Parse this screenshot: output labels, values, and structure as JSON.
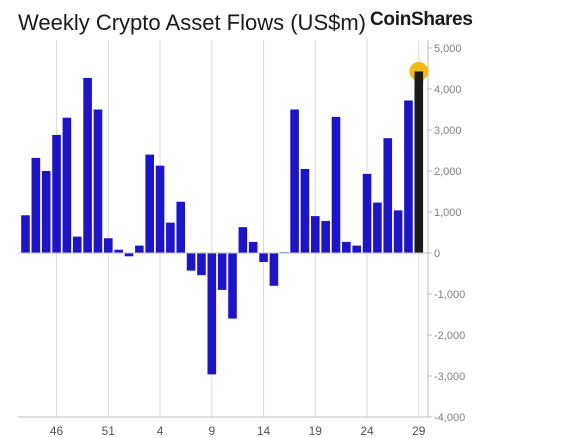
{
  "header": {
    "title": "Weekly Crypto Asset Flows (US$m)",
    "brand": "CoinShares"
  },
  "chart_data": {
    "type": "bar",
    "title": "Weekly Crypto Asset Flows (US$m)",
    "xlabel": "",
    "ylabel": "",
    "ylim": [
      -4000,
      5000
    ],
    "yticks": [
      5000,
      4000,
      3000,
      2000,
      1000,
      0,
      -1000,
      -2000,
      -3000,
      -4000
    ],
    "ytick_labels": [
      "5,000",
      "4,000",
      "3,000",
      "2,000",
      "1,000",
      "0",
      "-1,000",
      "-2,000",
      "-3,000",
      "-4,000"
    ],
    "x_tick_labels": [
      {
        "index": 3,
        "label": "46"
      },
      {
        "index": 8,
        "label": "51"
      },
      {
        "index": 13,
        "label": "4"
      },
      {
        "index": 18,
        "label": "9"
      },
      {
        "index": 23,
        "label": "14"
      },
      {
        "index": 28,
        "label": "19"
      },
      {
        "index": 33,
        "label": "24"
      },
      {
        "index": 38,
        "label": "29"
      }
    ],
    "grid": "vertical lines at labeled weeks",
    "bar_color": "#1c14cc",
    "last_bar_color": "#1a1a1a",
    "highlight_color": "#f2b705",
    "values": [
      920,
      2320,
      2000,
      2880,
      3300,
      400,
      4270,
      3500,
      360,
      80,
      -80,
      180,
      2400,
      2130,
      740,
      1250,
      -430,
      -540,
      -2960,
      -900,
      -1600,
      630,
      270,
      -220,
      -800,
      20,
      3500,
      2050,
      900,
      780,
      3320,
      270,
      180,
      1930,
      1230,
      2800,
      1040,
      3720,
      4380
    ]
  }
}
